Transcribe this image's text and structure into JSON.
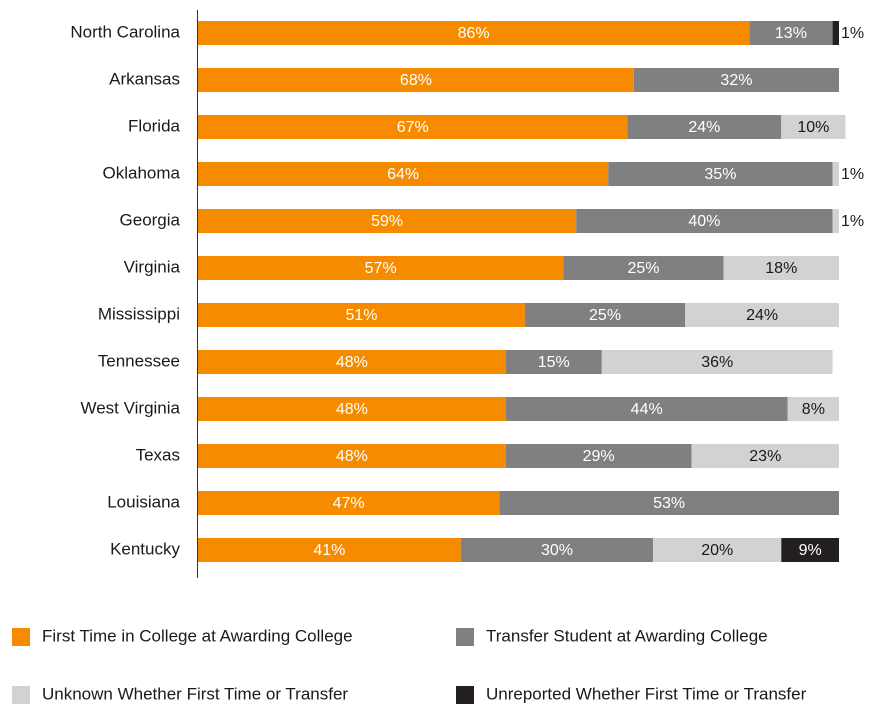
{
  "chart_data": {
    "type": "stacked-bar-horizontal",
    "categories": [
      "North Carolina",
      "Arkansas",
      "Florida",
      "Oklahoma",
      "Georgia",
      "Virginia",
      "Mississippi",
      "Tennessee",
      "West Virginia",
      "Texas",
      "Louisiana",
      "Kentucky"
    ],
    "series": [
      {
        "name": "First Time in College at Awarding College",
        "color": "#f78b00",
        "values": [
          86,
          68,
          67,
          64,
          59,
          57,
          51,
          48,
          48,
          48,
          47,
          41
        ],
        "value_labels": [
          "86%",
          "68%",
          "67%",
          "64%",
          "59%",
          "57%",
          "51%",
          "48%",
          "48%",
          "48%",
          "47%",
          "41%"
        ]
      },
      {
        "name": "Transfer Student at Awarding College",
        "color": "#808083",
        "values": [
          13,
          32,
          24,
          35,
          40,
          25,
          25,
          15,
          44,
          29,
          53,
          30
        ],
        "value_labels": [
          "13%",
          "32%",
          "24%",
          "35%",
          "40%",
          "25%",
          "25%",
          "15%",
          "44%",
          "29%",
          "53%",
          "30%"
        ]
      },
      {
        "name": "Unknown Whether First Time or Transfer",
        "color": "#d1d2d4",
        "values": [
          null,
          null,
          10,
          1,
          1,
          18,
          24,
          36,
          8,
          23,
          null,
          20
        ],
        "value_labels": [
          null,
          null,
          "10%",
          "1%",
          "1%",
          "18%",
          "24%",
          "36%",
          "8%",
          "23%",
          null,
          "20%"
        ]
      },
      {
        "name": "Unreported Whether First Time or Transfer",
        "color": "#231f20",
        "values": [
          1,
          null,
          null,
          null,
          null,
          null,
          null,
          null,
          null,
          null,
          null,
          9
        ],
        "value_labels": [
          "1%",
          null,
          null,
          null,
          null,
          null,
          null,
          null,
          null,
          null,
          null,
          "9%"
        ]
      }
    ]
  }
}
